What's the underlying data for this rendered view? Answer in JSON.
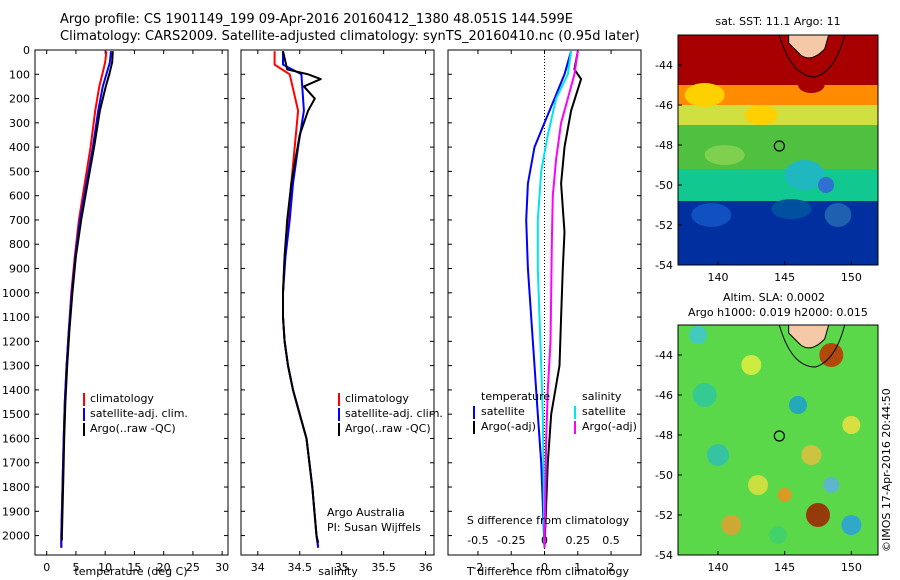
{
  "header": {
    "line1": "Argo profile: CS 1901149_199 09-Apr-2016 20160412_1380 48.051S 144.599E",
    "line2": "Climatology: CARS2009. Satellite-adjusted climatology: synTS_20160410.nc (0.95d later)"
  },
  "chart_data": [
    {
      "type": "line",
      "xlabel": "temperature (deg C)",
      "ylabel": "",
      "xlim": [
        -2,
        31
      ],
      "ylim": [
        2080,
        0
      ],
      "xticks": [
        0,
        5,
        10,
        15,
        20,
        25,
        30
      ],
      "yticks": [
        0,
        100,
        200,
        300,
        400,
        500,
        600,
        700,
        800,
        900,
        1000,
        1100,
        1200,
        1300,
        1400,
        1500,
        1600,
        1700,
        1800,
        1900,
        2000
      ],
      "legend": [
        "climatology",
        "satellite-adj. clim.",
        "Argo(..raw -QC)"
      ],
      "legend_position": "bottom-right",
      "series": [
        {
          "name": "climatology",
          "color": "#ff0000",
          "x": [
            10.2,
            10.0,
            9.5,
            9.0,
            8.3,
            7.5,
            6.5,
            5.5,
            4.8,
            4.2,
            3.8,
            3.4,
            3.1,
            2.9,
            2.75,
            2.6,
            2.5,
            2.5
          ],
          "y": [
            5,
            50,
            100,
            150,
            250,
            400,
            550,
            700,
            850,
            1000,
            1150,
            1300,
            1450,
            1600,
            1750,
            1900,
            2000,
            2050
          ]
        },
        {
          "name": "satellite-adj. clim.",
          "color": "#0000ff",
          "x": [
            11.0,
            10.8,
            10.2,
            9.6,
            8.8,
            7.9,
            6.8,
            5.7,
            4.9,
            4.3,
            3.8,
            3.4,
            3.1,
            2.9,
            2.75,
            2.6,
            2.5,
            2.5
          ],
          "y": [
            5,
            50,
            100,
            150,
            250,
            400,
            550,
            700,
            850,
            1000,
            1150,
            1300,
            1450,
            1600,
            1750,
            1900,
            2000,
            2050
          ]
        },
        {
          "name": "Argo(..raw -QC)",
          "color": "#000000",
          "x": [
            11.3,
            11.2,
            10.7,
            10.1,
            9.1,
            8.1,
            7.0,
            5.9,
            5.0,
            4.4,
            3.9,
            3.5,
            3.2,
            3.0,
            2.85,
            2.7,
            2.6,
            2.6
          ],
          "y": [
            5,
            50,
            100,
            150,
            250,
            400,
            550,
            700,
            850,
            1000,
            1150,
            1300,
            1450,
            1600,
            1750,
            1900,
            2000,
            2020
          ]
        }
      ]
    },
    {
      "type": "line",
      "xlabel": "salinity",
      "ylabel": "",
      "xlim": [
        33.8,
        36.1
      ],
      "ylim": [
        2080,
        0
      ],
      "xticks": [
        34,
        34.5,
        35,
        35.5,
        36
      ],
      "legend": [
        "climatology",
        "satellite-adj. clim.",
        "Argo(..raw -QC)"
      ],
      "legend_position": "bottom-right",
      "annotation": [
        "Argo Australia",
        "PI: Susan Wijffels"
      ],
      "series": [
        {
          "name": "climatology",
          "color": "#ff0000",
          "x": [
            34.2,
            34.2,
            34.38,
            34.48,
            34.44,
            34.4,
            34.36,
            34.32,
            34.3,
            34.3,
            34.32,
            34.36,
            34.42,
            34.5,
            34.58,
            34.65,
            34.7,
            34.72
          ],
          "y": [
            5,
            60,
            100,
            250,
            400,
            550,
            700,
            850,
            1000,
            1100,
            1200,
            1300,
            1400,
            1500,
            1600,
            1800,
            2000,
            2050
          ]
        },
        {
          "name": "satellite-adj. clim.",
          "color": "#0000ff",
          "x": [
            34.3,
            34.3,
            34.52,
            34.55,
            34.48,
            34.42,
            34.38,
            34.33,
            34.3,
            34.3,
            34.32,
            34.36,
            34.42,
            34.5,
            34.58,
            34.65,
            34.7,
            34.72
          ],
          "y": [
            5,
            60,
            100,
            250,
            400,
            550,
            700,
            850,
            1000,
            1100,
            1200,
            1300,
            1400,
            1500,
            1600,
            1800,
            2000,
            2050
          ]
        },
        {
          "name": "Argo(..raw -QC)",
          "color": "#000000",
          "x": [
            34.3,
            34.35,
            34.6,
            34.75,
            34.55,
            34.68,
            34.6,
            34.5,
            34.45,
            34.4,
            34.35,
            34.32,
            34.3,
            34.3,
            34.32,
            34.36,
            34.42,
            34.5,
            34.58,
            34.65,
            34.7,
            34.72
          ],
          "y": [
            5,
            80,
            100,
            120,
            150,
            200,
            250,
            350,
            450,
            550,
            700,
            850,
            1000,
            1100,
            1200,
            1300,
            1400,
            1500,
            1600,
            1800,
            2000,
            2030
          ]
        }
      ]
    },
    {
      "type": "line",
      "xlabel_top": "S difference from climatology",
      "xlabel": "T difference from climatology",
      "xlim": [
        -2.9,
        2.9
      ],
      "ylim": [
        2080,
        0
      ],
      "xticks": [
        -2,
        -1,
        0,
        1,
        2
      ],
      "xticks_salinity": [
        -0.5,
        -0.25,
        0,
        0.25,
        0.5
      ],
      "legend_groups": [
        {
          "title": "temperature",
          "items": [
            {
              "name": "satellite",
              "color": "#0000ff"
            },
            {
              "name": "Argo(-adj)",
              "color": "#000000"
            }
          ]
        },
        {
          "title": "salinity",
          "items": [
            {
              "name": "satellite",
              "color": "#00e5ee"
            },
            {
              "name": "Argo(-adj)",
              "color": "#ff00ff"
            }
          ]
        }
      ],
      "series": [
        {
          "name": "temperature satellite",
          "color": "#0000ff",
          "x": [
            0.8,
            0.6,
            0.3,
            0,
            -0.3,
            -0.5,
            -0.55,
            -0.5,
            -0.4,
            -0.3,
            -0.2,
            -0.1,
            0
          ],
          "y": [
            5,
            100,
            200,
            300,
            400,
            550,
            700,
            900,
            1100,
            1300,
            1500,
            1700,
            2050
          ]
        },
        {
          "name": "temperature Argo(-adj)",
          "color": "#000000",
          "x": [
            1.0,
            0.9,
            1.1,
            0.8,
            0.6,
            0.5,
            0.55,
            0.6,
            0.55,
            0.5,
            0.45,
            0.2,
            0.1,
            0
          ],
          "y": [
            5,
            80,
            120,
            250,
            400,
            550,
            650,
            750,
            900,
            1100,
            1300,
            1500,
            1700,
            2050
          ]
        },
        {
          "name": "salinity satellite",
          "color": "#00e5ee",
          "x": [
            0.8,
            0.7,
            0.35,
            0.1,
            -0.1,
            -0.2,
            -0.2,
            -0.15,
            -0.1,
            -0.05,
            0
          ],
          "y": [
            5,
            100,
            200,
            350,
            500,
            700,
            900,
            1100,
            1300,
            1500,
            2050
          ]
        },
        {
          "name": "salinity Argo(-adj)",
          "color": "#ff00ff",
          "x": [
            1.0,
            0.9,
            0.7,
            0.5,
            0.35,
            0.25,
            0.22,
            0.2,
            0.18,
            0.1,
            0.05,
            0
          ],
          "y": [
            5,
            100,
            200,
            300,
            450,
            600,
            800,
            1000,
            1200,
            1400,
            1600,
            2050
          ]
        }
      ]
    },
    {
      "type": "heatmap",
      "title": "sat. SST: 11.1  Argo: 11",
      "xlim": [
        137,
        152
      ],
      "ylim": [
        -54,
        -42.5
      ],
      "xticks": [
        140,
        145,
        150
      ],
      "yticks": [
        -44,
        -46,
        -48,
        -50,
        -52,
        -54
      ],
      "marker": {
        "lon": 144.6,
        "lat": -48.05
      }
    },
    {
      "type": "heatmap",
      "title_lines": [
        "Altim. SLA: 0.0002",
        "Argo h1000: 0.019 h2000: 0.015"
      ],
      "xlim": [
        137,
        152
      ],
      "ylim": [
        -54,
        -42.5
      ],
      "xticks": [
        140,
        145,
        150
      ],
      "yticks": [
        -44,
        -46,
        -48,
        -50,
        -52,
        -54
      ],
      "marker": {
        "lon": 144.6,
        "lat": -48.05
      }
    }
  ],
  "legend_labels": {
    "climatology": "climatology",
    "satadj": "satellite-adj. clim.",
    "argo": "Argo(..raw -QC)",
    "temperature": "temperature",
    "salinity": "salinity",
    "satellite": "satellite",
    "argo_adj": "Argo(-adj)"
  },
  "annotation": {
    "line1": "Argo Australia",
    "line2": "PI: Susan Wijffels"
  },
  "axis_labels": {
    "temp": "temperature (deg C)",
    "sal": "salinity",
    "s_diff": "S difference from climatology",
    "t_diff": "T difference from climatology"
  },
  "map_titles": {
    "sst": "sat. SST: 11.1  Argo: 11",
    "sla1": "Altim. SLA: 0.0002",
    "sla2": "Argo h1000: 0.019 h2000: 0.015"
  },
  "watermark": "©IMOS 17-Apr-2016 20:44:50",
  "colors": {
    "red": "#ff0000",
    "blue": "#0000ff",
    "black": "#000000",
    "cyan": "#00e5ee",
    "magenta": "#ff00ff"
  }
}
